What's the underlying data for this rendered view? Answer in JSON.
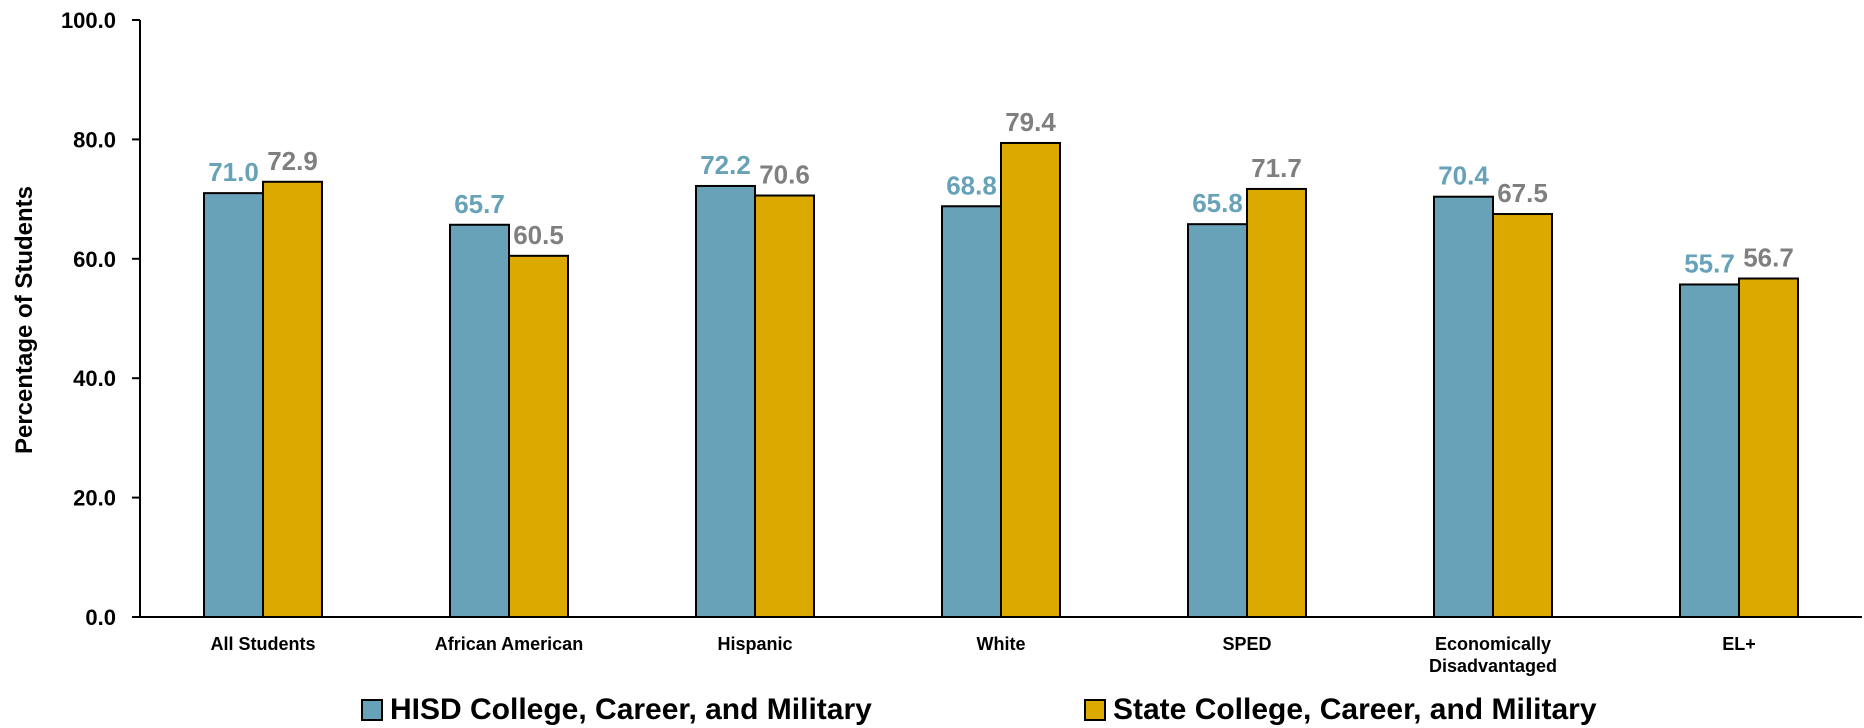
{
  "chart_data": {
    "type": "bar",
    "categories": [
      "All Students",
      "African American",
      "Hispanic",
      "White",
      "SPED",
      "Economically Disadvantaged",
      "EL+"
    ],
    "series": [
      {
        "name": "HISD College, Career, and Military",
        "values": [
          71.0,
          65.7,
          72.2,
          68.8,
          65.8,
          70.4,
          55.7
        ],
        "color": "#67A2B8",
        "label_color": "#67A2B8"
      },
      {
        "name": "State College, Career, and Military",
        "values": [
          72.9,
          60.5,
          70.6,
          79.4,
          71.7,
          67.5,
          56.7
        ],
        "color": "#DBA900",
        "label_color": "#7F7F7F"
      }
    ],
    "ylabel": "Percentage of Students",
    "ylim": [
      0,
      100
    ],
    "yticks": [
      "0.0",
      "20.0",
      "40.0",
      "60.0",
      "80.0",
      "100.0"
    ],
    "grid": false,
    "legend": "bottom"
  }
}
